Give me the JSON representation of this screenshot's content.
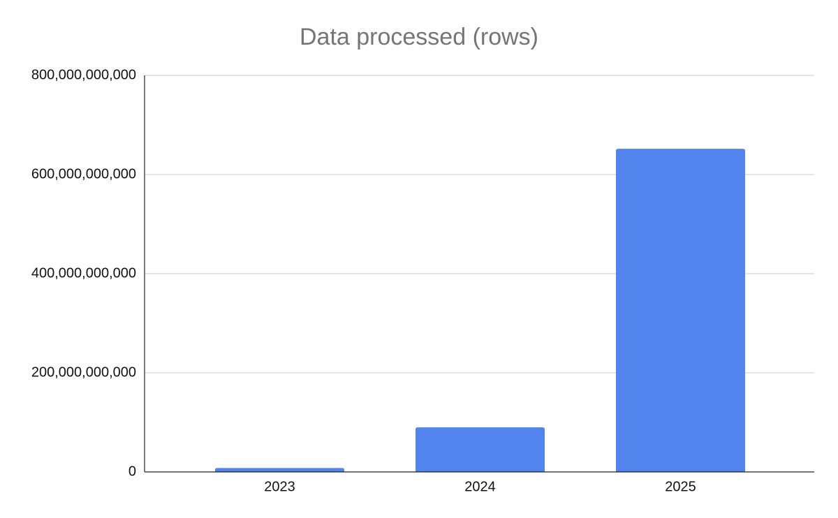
{
  "chart_data": {
    "type": "bar",
    "title": "Data processed (rows)",
    "categories": [
      "2023",
      "2024",
      "2025"
    ],
    "values": [
      8000000000,
      90000000000,
      652000000000
    ],
    "color": "#5383ec",
    "ylim": [
      0,
      800000000000
    ],
    "yticks": [
      0,
      {
        "value": 200000000000,
        "label": "200,000,000,000"
      },
      {
        "value": 400000000000,
        "label": "400,000,000,000"
      },
      {
        "value": 600000000000,
        "label": "600,000,000,000"
      },
      {
        "value": 800000000000,
        "label": "800,000,000,000"
      }
    ],
    "grid": true
  }
}
